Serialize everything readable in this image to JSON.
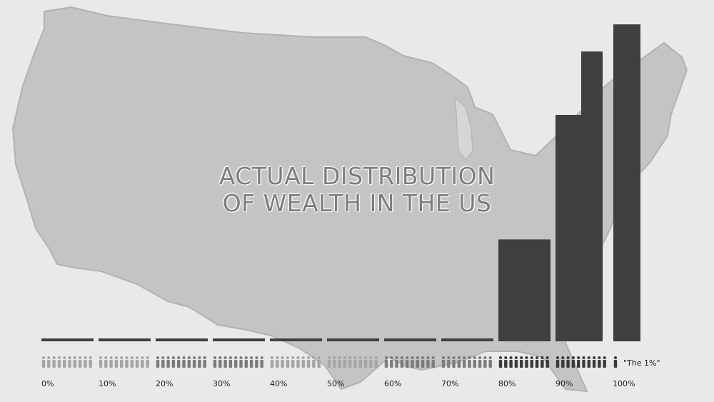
{
  "title_line1": "ACTUAL DISTRIBUTION",
  "title_line2": "OF WEALTH IN THE US",
  "colors": {
    "background": "#e9e9e9",
    "map": "#c4c4c4",
    "map_edge": "#b2b2b2",
    "bar": "#3f3f3f",
    "people_light": "#a5a5a5",
    "people_mid": "#7b7b7b",
    "people_dark": "#3a3a3a",
    "tick_text": "#222222"
  },
  "chart_data": {
    "type": "bar",
    "title": "ACTUAL DISTRIBUTION OF WEALTH IN THE US",
    "categories": [
      "0%",
      "10%",
      "20%",
      "30%",
      "40%",
      "50%",
      "60%",
      "70%",
      "80%",
      "90%",
      "100%"
    ],
    "values": [
      0.1,
      0.1,
      0.1,
      0.1,
      0.1,
      0.1,
      0.1,
      0.1,
      13.5,
      30,
      42
    ],
    "top_group_values": [
      30,
      42
    ],
    "top_group_layout": "stacked-overlap",
    "annotation": "\"The 1%\"",
    "ylim": [
      0,
      44
    ],
    "grid": false,
    "legend": "none",
    "people_per_group": [
      10,
      10,
      10,
      10,
      10,
      10,
      10,
      10,
      10,
      10,
      1
    ],
    "people_shade": [
      "light",
      "light",
      "mid",
      "mid",
      "light",
      "light",
      "mid",
      "mid",
      "dark",
      "dark",
      "dark"
    ]
  }
}
